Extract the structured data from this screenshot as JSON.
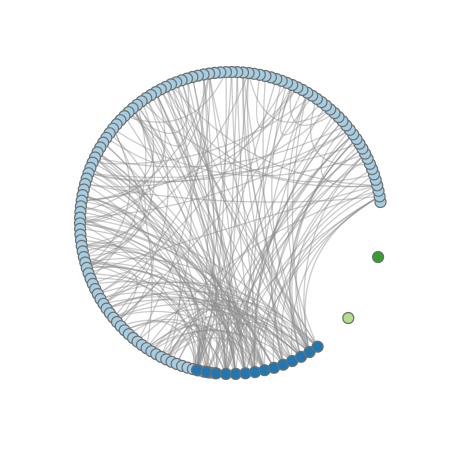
{
  "diagram": {
    "type": "circular-network",
    "groups": [
      {
        "name": "",
        "node_count": 120,
        "fill": "#a6cee3",
        "stroke": "#6f6f6f"
      },
      {
        "name": "",
        "node_count": 14,
        "fill": "#1f78b4",
        "stroke": "#6f6f6f"
      },
      {
        "name": "",
        "node_count": 1,
        "fill": "#b2df8a",
        "stroke": "#6f6f6f"
      },
      {
        "name": "",
        "node_count": 1,
        "fill": "#33a02c",
        "stroke": "#6f6f6f"
      }
    ],
    "edge_color": "#8c8c8c",
    "edge_count": 200
  }
}
